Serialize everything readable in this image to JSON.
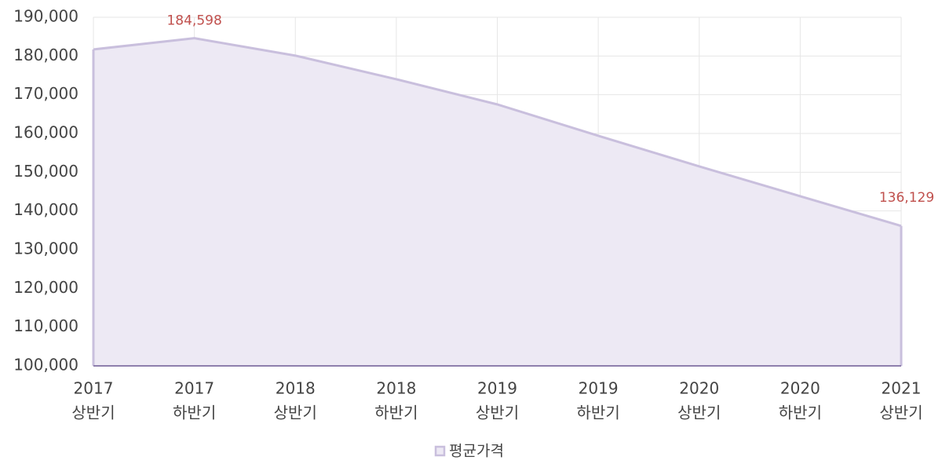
{
  "chart_data": {
    "type": "area",
    "categories": [
      [
        "2017",
        "상반기"
      ],
      [
        "2017",
        "하반기"
      ],
      [
        "2018",
        "상반기"
      ],
      [
        "2018",
        "하반기"
      ],
      [
        "2019",
        "상반기"
      ],
      [
        "2019",
        "하반기"
      ],
      [
        "2020",
        "상반기"
      ],
      [
        "2020",
        "하반기"
      ],
      [
        "2021",
        "상반기"
      ]
    ],
    "series": [
      {
        "name": "평균가격",
        "color": "#c9bfdd",
        "fill": "#ede9f4",
        "values": [
          181700,
          184598,
          180100,
          174000,
          167500,
          159400,
          151500,
          143800,
          136129
        ],
        "value_labels": [
          null,
          "184,598",
          null,
          null,
          null,
          null,
          null,
          null,
          "136,129"
        ]
      }
    ],
    "ylim": [
      100000,
      190000
    ],
    "yticks": [
      {
        "value": 100000,
        "label": "100,000"
      },
      {
        "value": 110000,
        "label": "110,000"
      },
      {
        "value": 120000,
        "label": "120,000"
      },
      {
        "value": 130000,
        "label": "130,000"
      },
      {
        "value": 140000,
        "label": "140,000"
      },
      {
        "value": 150000,
        "label": "150,000"
      },
      {
        "value": 160000,
        "label": "160,000"
      },
      {
        "value": 170000,
        "label": "170,000"
      },
      {
        "value": 180000,
        "label": "180,000"
      },
      {
        "value": 190000,
        "label": "190,000"
      }
    ],
    "grid": true,
    "legend": "bottom"
  }
}
